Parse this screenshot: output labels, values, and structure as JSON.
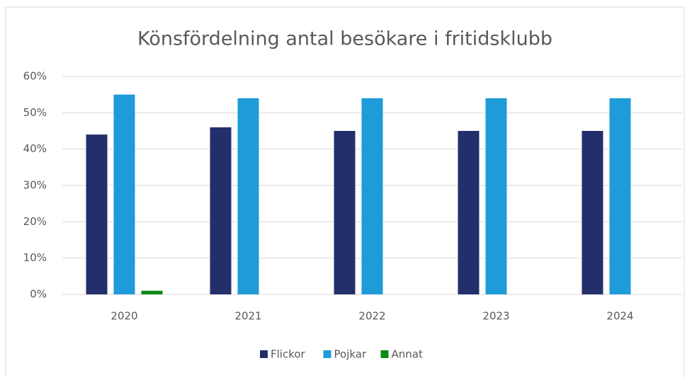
{
  "chart_data": {
    "type": "bar",
    "title": "Könsfördelning antal besökare i fritidsklubb",
    "categories": [
      "2020",
      "2021",
      "2022",
      "2023",
      "2024"
    ],
    "series": [
      {
        "name": "Flickor",
        "color": "#232f6b",
        "values": [
          44,
          46,
          45,
          45,
          45
        ]
      },
      {
        "name": "Pojkar",
        "color": "#1f9bd9",
        "values": [
          55,
          54,
          54,
          54,
          54
        ]
      },
      {
        "name": "Annat",
        "color": "#0e8a16",
        "values": [
          1,
          0,
          0,
          0,
          0
        ]
      }
    ],
    "ylim": [
      0,
      60
    ],
    "yticks": [
      {
        "value": 0,
        "label": "0%"
      },
      {
        "value": 10,
        "label": "10%"
      },
      {
        "value": 20,
        "label": "20%"
      },
      {
        "value": 30,
        "label": "30%"
      },
      {
        "value": 40,
        "label": "40%"
      },
      {
        "value": 50,
        "label": "50%"
      },
      {
        "value": 60,
        "label": "60%"
      }
    ],
    "grid": true,
    "legend": "bottom"
  }
}
